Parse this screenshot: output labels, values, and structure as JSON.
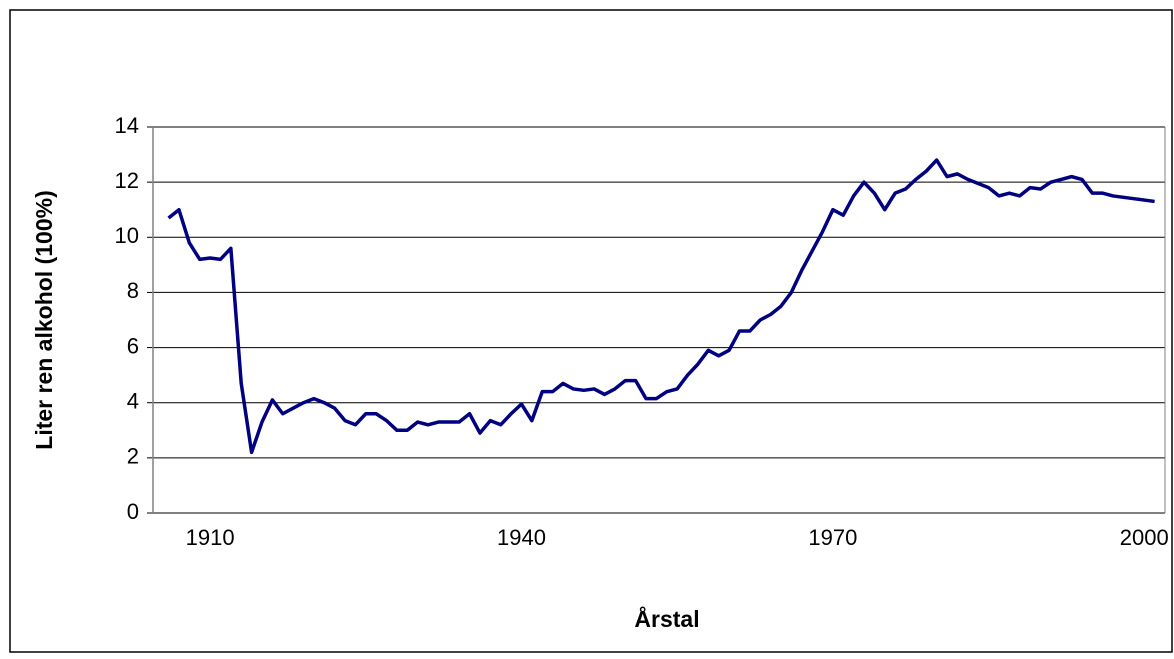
{
  "chart_data": {
    "type": "line",
    "y_label": "Liter ren alkohol (100%)",
    "x_label": "Årstal",
    "x": [
      1906,
      1907,
      1908,
      1909,
      1910,
      1911,
      1912,
      1913,
      1914,
      1915,
      1916,
      1917,
      1918,
      1919,
      1920,
      1921,
      1922,
      1923,
      1924,
      1925,
      1926,
      1927,
      1928,
      1929,
      1930,
      1931,
      1932,
      1933,
      1934,
      1935,
      1936,
      1937,
      1938,
      1939,
      1940,
      1941,
      1942,
      1943,
      1944,
      1945,
      1946,
      1947,
      1948,
      1949,
      1950,
      1951,
      1952,
      1953,
      1954,
      1955,
      1956,
      1957,
      1958,
      1959,
      1960,
      1961,
      1962,
      1963,
      1964,
      1965,
      1966,
      1967,
      1968,
      1969,
      1970,
      1971,
      1972,
      1973,
      1974,
      1975,
      1976,
      1977,
      1978,
      1979,
      1980,
      1981,
      1982,
      1983,
      1984,
      1985,
      1986,
      1987,
      1988,
      1989,
      1990,
      1991,
      1992,
      1993,
      1994,
      1995,
      1996,
      1997,
      1998,
      1999,
      2000,
      2001
    ],
    "series": [
      {
        "name": "Liter ren alkohol",
        "color": "#000080",
        "values": [
          10.7,
          11.0,
          9.8,
          9.2,
          9.25,
          9.2,
          9.6,
          4.7,
          2.2,
          3.3,
          4.1,
          3.6,
          3.8,
          4.0,
          4.15,
          4.0,
          3.8,
          3.35,
          3.2,
          3.6,
          3.6,
          3.35,
          3.0,
          3.0,
          3.3,
          3.2,
          3.3,
          3.3,
          3.3,
          3.6,
          2.9,
          3.35,
          3.2,
          3.6,
          3.95,
          3.35,
          4.4,
          4.4,
          4.7,
          4.5,
          4.45,
          4.5,
          4.3,
          4.5,
          4.8,
          4.8,
          4.15,
          4.15,
          4.4,
          4.5,
          5.0,
          5.4,
          5.9,
          5.7,
          5.9,
          6.6,
          6.6,
          7.0,
          7.2,
          7.5,
          8.0,
          8.8,
          9.5,
          10.2,
          11.0,
          10.8,
          11.5,
          12.0,
          11.6,
          11.0,
          11.6,
          11.75,
          12.1,
          12.4,
          12.8,
          12.2,
          12.3,
          12.1,
          11.95,
          11.8,
          11.5,
          11.6,
          11.5,
          11.8,
          11.75,
          12.0,
          12.1,
          12.2,
          12.1,
          11.6,
          11.6,
          11.5,
          11.45,
          11.4,
          11.35,
          11.3
        ]
      }
    ],
    "xlim": [
      1904.5,
      2002
    ],
    "xticks": [
      1910,
      1940,
      1970,
      2000
    ],
    "ylim": [
      0,
      14
    ],
    "yticks": [
      0,
      2,
      4,
      6,
      8,
      10,
      12,
      14
    ],
    "grid": true
  }
}
